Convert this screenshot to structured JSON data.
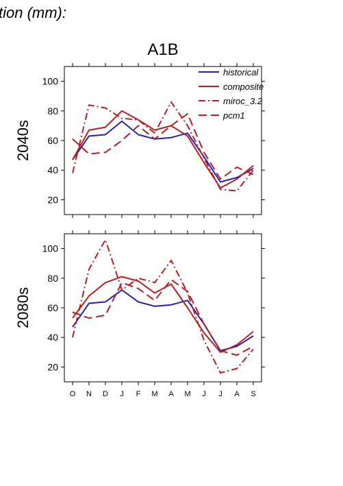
{
  "header": {
    "title_fragment": "tion (mm):",
    "scenario": "A1B"
  },
  "legend": [
    {
      "name": "historical",
      "color": "#2020b8",
      "dash": "solid"
    },
    {
      "name": "composite",
      "color": "#b81c1c",
      "dash": "solid"
    },
    {
      "name": "miroc_3.2",
      "color": "#b81c1c",
      "dash": "dashdot"
    },
    {
      "name": "pcm1",
      "color": "#b81c1c",
      "dash": "longdash"
    }
  ],
  "chart_data": [
    {
      "type": "line",
      "panel_label": "2040s",
      "categories": [
        "O",
        "N",
        "D",
        "J",
        "F",
        "M",
        "A",
        "M",
        "J",
        "J",
        "A",
        "S"
      ],
      "ylim": [
        10,
        110
      ],
      "yticks": [
        20,
        40,
        60,
        80,
        100
      ],
      "series": [
        {
          "name": "historical",
          "values": [
            47,
            63,
            64,
            73,
            64,
            61,
            62,
            65,
            49,
            32,
            35,
            41
          ]
        },
        {
          "name": "composite",
          "values": [
            47,
            67,
            69,
            80,
            74,
            67,
            70,
            63,
            45,
            28,
            34,
            43
          ]
        },
        {
          "name": "miroc_3.2",
          "values": [
            38,
            84,
            82,
            75,
            74,
            65,
            86,
            70,
            48,
            27,
            26,
            40
          ]
        },
        {
          "name": "pcm1",
          "values": [
            61,
            51,
            52,
            60,
            70,
            61,
            70,
            78,
            52,
            34,
            42,
            37
          ]
        }
      ]
    },
    {
      "type": "line",
      "panel_label": "2080s",
      "categories": [
        "O",
        "N",
        "D",
        "J",
        "F",
        "M",
        "A",
        "M",
        "J",
        "J",
        "A",
        "S"
      ],
      "ylim": [
        10,
        110
      ],
      "yticks": [
        20,
        40,
        60,
        80,
        100
      ],
      "series": [
        {
          "name": "historical",
          "values": [
            47,
            63,
            64,
            72,
            64,
            61,
            62,
            65,
            49,
            31,
            34,
            41
          ]
        },
        {
          "name": "composite",
          "values": [
            53,
            68,
            77,
            81,
            78,
            70,
            76,
            60,
            43,
            30,
            35,
            44
          ]
        },
        {
          "name": "miroc_3.2",
          "values": [
            40,
            86,
            106,
            72,
            80,
            77,
            92,
            70,
            38,
            16,
            19,
            32
          ]
        },
        {
          "name": "pcm1",
          "values": [
            57,
            53,
            55,
            77,
            73,
            65,
            79,
            71,
            49,
            31,
            28,
            34
          ]
        }
      ]
    }
  ]
}
